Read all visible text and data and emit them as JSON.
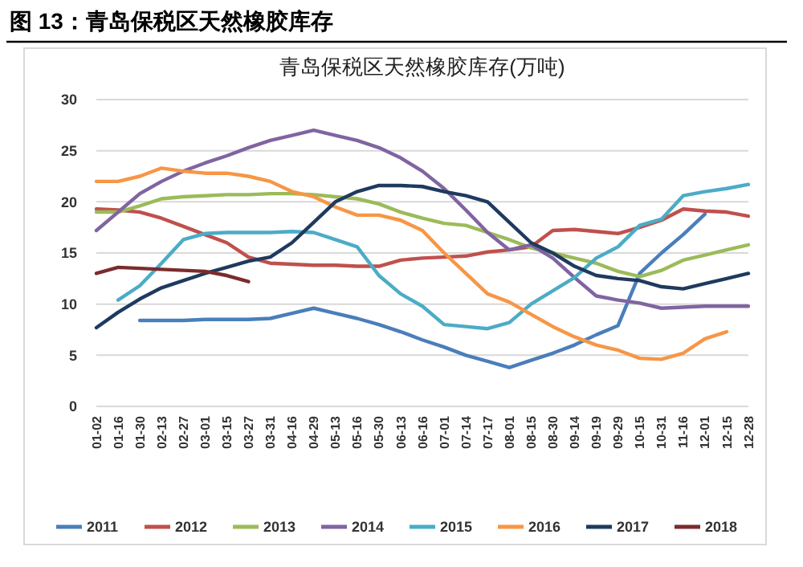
{
  "chart_data": {
    "type": "line",
    "title": "图 13：青岛保税区天然橡胶库存",
    "subtitle": "青岛保税区天然橡胶库存(万吨)",
    "categories": [
      "01-02",
      "01-16",
      "01-30",
      "02-13",
      "02-27",
      "03-01",
      "03-15",
      "03-27",
      "03-31",
      "04-16",
      "04-29",
      "05-13",
      "05-16",
      "05-30",
      "06-13",
      "06-16",
      "07-01",
      "07-14",
      "07-17",
      "08-01",
      "08-15",
      "08-30",
      "09-14",
      "09-19",
      "09-29",
      "10-15",
      "10-31",
      "11-16",
      "12-01",
      "12-15",
      "12-28"
    ],
    "ylim": [
      0,
      30
    ],
    "yticks": [
      0,
      5,
      10,
      15,
      20,
      25,
      30
    ],
    "grid": "y",
    "legend": "bottom",
    "marker": "none",
    "line_style": "solid",
    "series": [
      {
        "name": "2011",
        "color": "#4a7ebb",
        "values": [
          null,
          null,
          8.4,
          8.4,
          8.4,
          8.5,
          8.5,
          8.5,
          8.6,
          9.1,
          9.6,
          9.1,
          8.6,
          8.0,
          7.3,
          6.5,
          5.8,
          5.0,
          4.4,
          3.8,
          4.5,
          5.2,
          6.0,
          7.0,
          7.9,
          13.0,
          15.0,
          16.8,
          18.8,
          null,
          null
        ]
      },
      {
        "name": "2012",
        "color": "#c0504d",
        "values": [
          19.3,
          19.2,
          19.0,
          18.4,
          17.6,
          16.8,
          16.0,
          14.6,
          14.0,
          13.9,
          13.8,
          13.8,
          13.7,
          13.7,
          14.3,
          14.5,
          14.6,
          14.7,
          15.1,
          15.3,
          15.6,
          17.2,
          17.3,
          17.1,
          16.9,
          17.5,
          18.2,
          19.3,
          19.1,
          19.0,
          18.6
        ]
      },
      {
        "name": "2013",
        "color": "#9bbb59",
        "values": [
          19.0,
          19.0,
          19.6,
          20.3,
          20.5,
          20.6,
          20.7,
          20.7,
          20.8,
          20.8,
          20.7,
          20.5,
          20.3,
          19.8,
          19.0,
          18.4,
          17.9,
          17.7,
          17.0,
          16.3,
          15.5,
          15.0,
          14.5,
          14.0,
          13.2,
          12.7,
          13.3,
          14.3,
          14.8,
          15.3,
          15.8
        ]
      },
      {
        "name": "2014",
        "color": "#8064a2",
        "values": [
          17.2,
          19.0,
          20.8,
          22.0,
          23.0,
          23.8,
          24.5,
          25.3,
          26.0,
          26.5,
          27.0,
          26.5,
          26.0,
          25.3,
          24.3,
          23.0,
          21.3,
          19.2,
          17.0,
          15.3,
          15.8,
          14.5,
          12.6,
          10.8,
          10.4,
          10.1,
          9.6,
          9.7,
          9.8,
          9.8,
          9.8
        ]
      },
      {
        "name": "2015",
        "color": "#4bacc6",
        "values": [
          null,
          10.4,
          11.8,
          14.0,
          16.3,
          16.9,
          17.0,
          17.0,
          17.0,
          17.1,
          17.0,
          16.3,
          15.6,
          12.8,
          11.0,
          9.8,
          8.0,
          7.8,
          7.6,
          8.2,
          10.0,
          11.3,
          12.6,
          14.5,
          15.6,
          17.7,
          18.3,
          20.6,
          21.0,
          21.3,
          21.7
        ]
      },
      {
        "name": "2016",
        "color": "#f79646",
        "values": [
          22.0,
          22.0,
          22.5,
          23.3,
          23.0,
          22.8,
          22.8,
          22.5,
          22.0,
          21.0,
          20.5,
          19.5,
          18.7,
          18.7,
          18.2,
          17.2,
          15.0,
          13.0,
          11.0,
          10.2,
          9.0,
          7.8,
          6.8,
          6.0,
          5.5,
          4.7,
          4.6,
          5.2,
          6.6,
          7.3,
          null
        ]
      },
      {
        "name": "2017",
        "color": "#1f3a5f",
        "values": [
          7.7,
          9.2,
          10.5,
          11.6,
          12.3,
          13.0,
          13.6,
          14.2,
          14.6,
          16.0,
          18.0,
          20.0,
          21.0,
          21.6,
          21.6,
          21.5,
          21.0,
          20.6,
          20.0,
          18.0,
          16.0,
          15.0,
          13.7,
          12.8,
          12.5,
          12.3,
          11.7,
          11.5,
          12.0,
          12.5,
          13.0
        ]
      },
      {
        "name": "2018",
        "color": "#7b2c2c",
        "values": [
          13.0,
          13.6,
          13.5,
          13.4,
          13.3,
          13.2,
          12.8,
          12.2,
          null,
          null,
          null,
          null,
          null,
          null,
          null,
          null,
          null,
          null,
          null,
          null,
          null,
          null,
          null,
          null,
          null,
          null,
          null,
          null,
          null,
          null,
          null
        ]
      }
    ]
  }
}
